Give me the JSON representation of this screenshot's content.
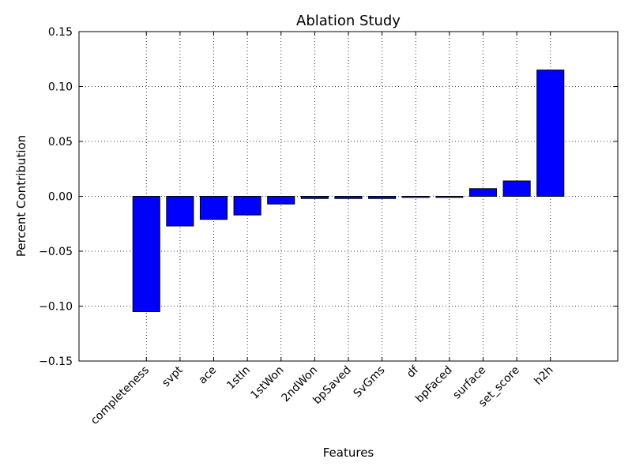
{
  "chart_data": {
    "type": "bar",
    "title": "Ablation Study",
    "xlabel": "Features",
    "ylabel": "Percent Contribution",
    "categories": [
      "completeness",
      "svpt",
      "ace",
      "1stIn",
      "1stWon",
      "2ndWon",
      "bpSaved",
      "SvGms",
      "df",
      "bpFaced",
      "surface",
      "set_score",
      "h2h"
    ],
    "values": [
      -0.105,
      -0.027,
      -0.021,
      -0.017,
      -0.007,
      -0.002,
      -0.002,
      -0.002,
      -0.001,
      -0.001,
      0.007,
      0.014,
      0.115
    ],
    "ylim": [
      -0.15,
      0.15
    ],
    "yticks": [
      -0.15,
      -0.1,
      -0.05,
      0.0,
      0.05,
      0.1,
      0.15
    ],
    "ytick_labels": [
      "−0.15",
      "−0.10",
      "−0.05",
      "0.00",
      "0.05",
      "0.10",
      "0.15"
    ],
    "grid": true,
    "bar_color": "#0000ff"
  }
}
